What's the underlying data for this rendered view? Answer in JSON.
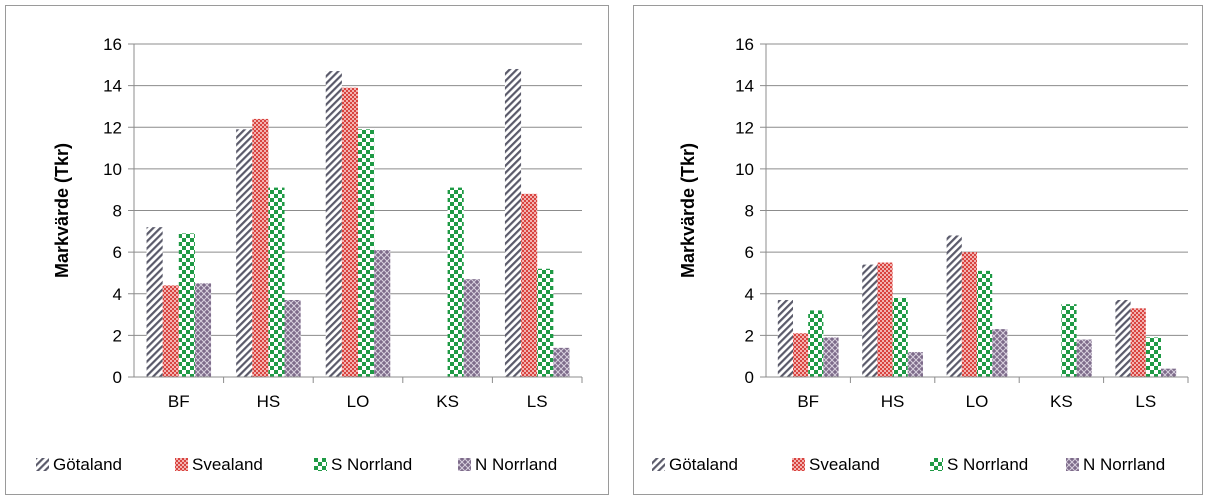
{
  "colors": {
    "gotaland": "#5a5a6a",
    "svealand": "#d9433f",
    "s_norrland": "#1f9a45",
    "n_norrland": "#7d6b8a",
    "grid": "#8c8c8c",
    "axis": "#8c8c8c"
  },
  "chart_data": [
    {
      "type": "bar",
      "categories": [
        "BF",
        "HS",
        "LO",
        "KS",
        "LS"
      ],
      "ylabel": "Markvärde (Tkr)",
      "ylim": [
        0,
        16
      ],
      "yticks": [
        0,
        2,
        4,
        6,
        8,
        10,
        12,
        14,
        16
      ],
      "grid": true,
      "legend": "bottom",
      "series": [
        {
          "name": "Götaland",
          "values": [
            7.2,
            11.9,
            14.7,
            null,
            14.8
          ]
        },
        {
          "name": "Svealand",
          "values": [
            4.4,
            12.4,
            13.9,
            null,
            8.8
          ]
        },
        {
          "name": "S Norrland",
          "values": [
            6.9,
            9.1,
            11.9,
            9.1,
            5.2
          ]
        },
        {
          "name": "N Norrland",
          "values": [
            4.5,
            3.7,
            6.1,
            4.7,
            1.4
          ]
        }
      ]
    },
    {
      "type": "bar",
      "categories": [
        "BF",
        "HS",
        "LO",
        "KS",
        "LS"
      ],
      "ylabel": "Markvärde (Tkr)",
      "ylim": [
        0,
        16
      ],
      "yticks": [
        0,
        2,
        4,
        6,
        8,
        10,
        12,
        14,
        16
      ],
      "grid": true,
      "legend": "bottom",
      "series": [
        {
          "name": "Götaland",
          "values": [
            3.7,
            5.4,
            6.8,
            null,
            3.7
          ]
        },
        {
          "name": "Svealand",
          "values": [
            2.1,
            5.5,
            6.0,
            null,
            3.3
          ]
        },
        {
          "name": "S Norrland",
          "values": [
            3.2,
            3.8,
            5.1,
            3.5,
            1.9
          ]
        },
        {
          "name": "N Norrland",
          "values": [
            1.9,
            1.2,
            2.3,
            1.8,
            0.4
          ]
        }
      ]
    }
  ]
}
